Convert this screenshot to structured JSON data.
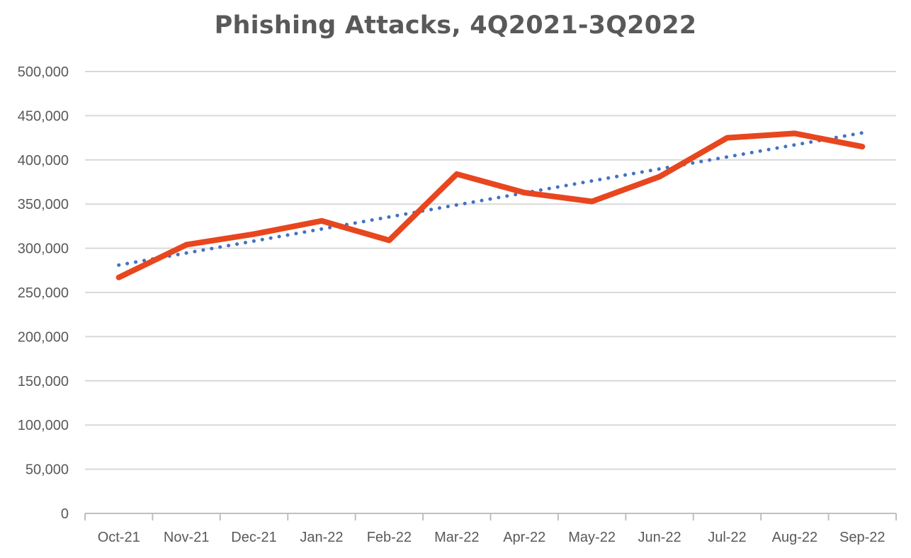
{
  "chart_data": {
    "type": "line",
    "title": "Phishing Attacks, 4Q2021-3Q2022",
    "xlabel": "",
    "ylabel": "",
    "categories": [
      "Oct-21",
      "Nov-21",
      "Dec-21",
      "Jan-22",
      "Feb-22",
      "Mar-22",
      "Apr-22",
      "May-22",
      "Jun-22",
      "Jul-22",
      "Aug-22",
      "Sep-22"
    ],
    "series": [
      {
        "values": [
          267000,
          304000,
          316000,
          331000,
          309000,
          384000,
          363000,
          353000,
          381000,
          425000,
          430000,
          415000
        ],
        "color": "#e8461e",
        "style": "solid"
      },
      {
        "trendline": "linear",
        "values": [
          281000,
          294600,
          308200,
          321800,
          335400,
          349000,
          362600,
          376200,
          389800,
          403400,
          417000,
          430600
        ],
        "color": "#4472c4",
        "style": "dotted"
      }
    ],
    "ylim": [
      0,
      500000
    ],
    "yticks": [
      "0",
      "50,000",
      "100,000",
      "150,000",
      "200,000",
      "250,000",
      "300,000",
      "350,000",
      "400,000",
      "450,000",
      "500,000"
    ],
    "grid": true,
    "legend": "none"
  }
}
